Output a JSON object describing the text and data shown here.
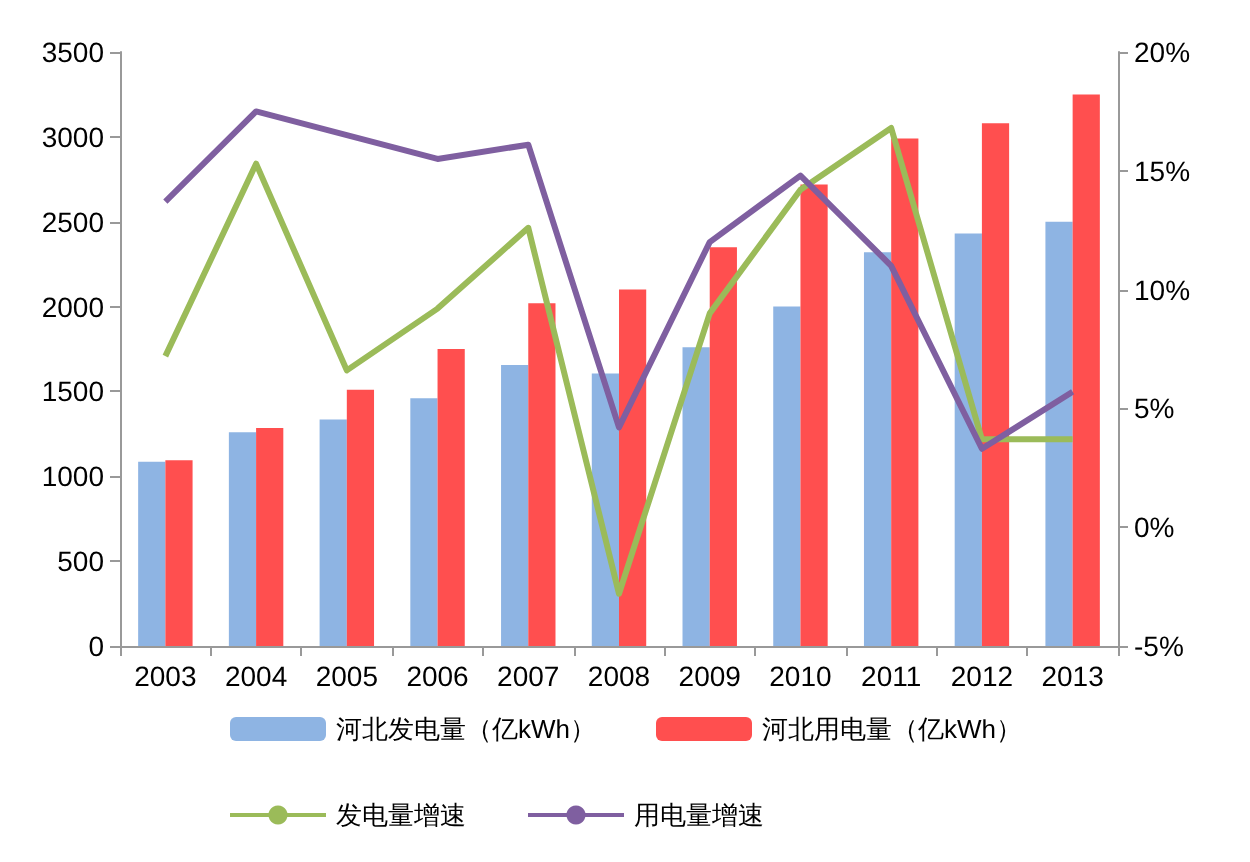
{
  "chart_data": {
    "type": "bar",
    "categories": [
      "2003",
      "2004",
      "2005",
      "2006",
      "2007",
      "2008",
      "2009",
      "2010",
      "2011",
      "2012",
      "2013"
    ],
    "series": [
      {
        "name": "河北发电量（亿kWh）",
        "color": "#8eb4e3",
        "values": [
          1085,
          1260,
          1335,
          1460,
          1655,
          1605,
          1760,
          2000,
          2320,
          2430,
          2500
        ]
      },
      {
        "name": "河北用电量（亿kWh）",
        "color": "#ff4f4f",
        "values": [
          1095,
          1285,
          1510,
          1750,
          2020,
          2100,
          2350,
          2720,
          2990,
          3080,
          3250
        ]
      },
      {
        "name": "发电量增速",
        "type": "line",
        "axis": "y2",
        "color": "#9bbb59",
        "values": [
          7.2,
          15.3,
          6.6,
          9.2,
          12.6,
          -2.8,
          9.0,
          14.2,
          16.8,
          3.7,
          3.7
        ]
      },
      {
        "name": "用电量增速",
        "type": "line",
        "axis": "y2",
        "color": "#7f5fa0",
        "values": [
          13.7,
          17.5,
          16.5,
          15.5,
          16.1,
          4.2,
          12.0,
          14.8,
          11.0,
          3.3,
          5.7
        ]
      }
    ],
    "ylim": [
      0,
      3500
    ],
    "yticks": [
      0,
      500,
      1000,
      1500,
      2000,
      2500,
      3000,
      3500
    ],
    "y2lim": [
      -5,
      20
    ],
    "y2ticks": [
      {
        "value": -5,
        "label": "-5%"
      },
      {
        "value": 0,
        "label": "0%"
      },
      {
        "value": 5,
        "label": "5%"
      },
      {
        "value": 10,
        "label": "10%"
      },
      {
        "value": 15,
        "label": "15%"
      },
      {
        "value": 20,
        "label": "20%"
      }
    ],
    "grid": false,
    "legend": "bottom",
    "marker": "none",
    "line_style": "solid"
  }
}
